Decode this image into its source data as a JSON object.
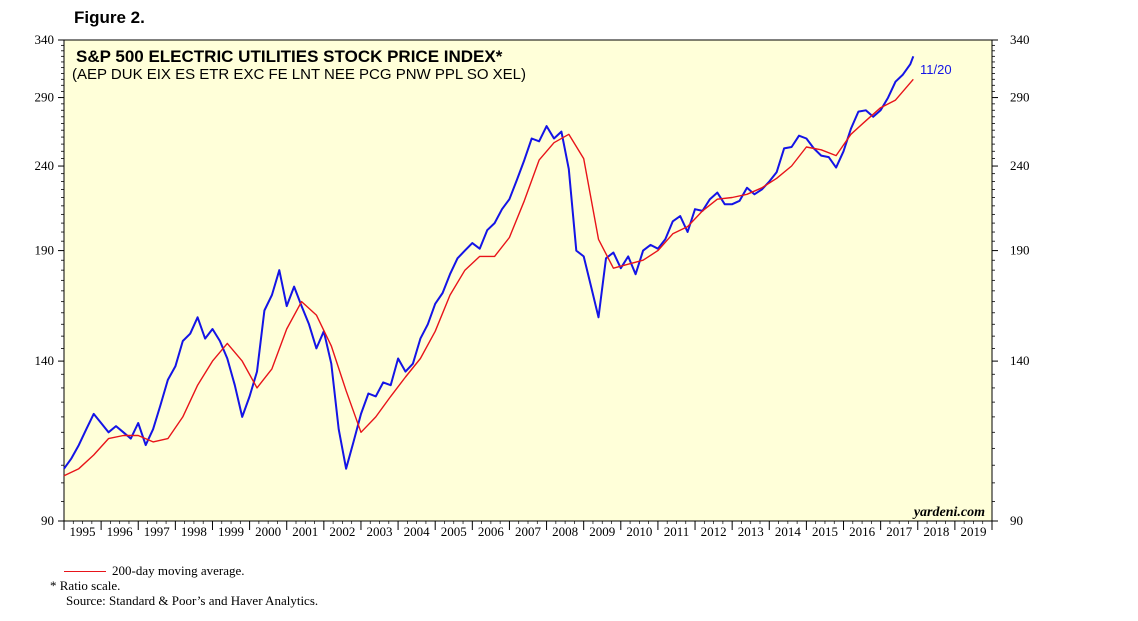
{
  "figure_label": "Figure 2.",
  "chart_data": {
    "type": "line",
    "title": "S&P 500 ELECTRIC UTILITIES STOCK PRICE INDEX*",
    "subtitle": "(AEP DUK EIX ES ETR EXC FE LNT NEE PCG PNW PPL SO XEL)",
    "y_scale": "log",
    "ylim": [
      90,
      340
    ],
    "y_ticks": [
      90,
      140,
      190,
      240,
      290,
      340
    ],
    "x_range": [
      1995,
      2020
    ],
    "x_tick_labels": [
      "1995",
      "1996",
      "1997",
      "1998",
      "1999",
      "2000",
      "2001",
      "2002",
      "2003",
      "2004",
      "2005",
      "2006",
      "2007",
      "2008",
      "2009",
      "2010",
      "2011",
      "2012",
      "2013",
      "2014",
      "2015",
      "2016",
      "2017",
      "2018",
      "2019"
    ],
    "latest_label": "11/20",
    "watermark": "yardeni.com",
    "series": [
      {
        "name": "S&P 500 Electric Utilities Stock Price Index",
        "color": "#1414e6",
        "x": [
          1995.0,
          1995.2,
          1995.4,
          1995.6,
          1995.8,
          1996.0,
          1996.2,
          1996.4,
          1996.6,
          1996.8,
          1997.0,
          1997.2,
          1997.4,
          1997.6,
          1997.8,
          1998.0,
          1998.2,
          1998.4,
          1998.6,
          1998.8,
          1999.0,
          1999.2,
          1999.4,
          1999.6,
          1999.8,
          2000.0,
          2000.2,
          2000.4,
          2000.6,
          2000.8,
          2001.0,
          2001.2,
          2001.4,
          2001.6,
          2001.8,
          2002.0,
          2002.2,
          2002.4,
          2002.6,
          2002.8,
          2003.0,
          2003.2,
          2003.4,
          2003.6,
          2003.8,
          2004.0,
          2004.2,
          2004.4,
          2004.6,
          2004.8,
          2005.0,
          2005.2,
          2005.4,
          2005.6,
          2005.8,
          2006.0,
          2006.2,
          2006.4,
          2006.6,
          2006.8,
          2007.0,
          2007.2,
          2007.4,
          2007.6,
          2007.8,
          2008.0,
          2008.2,
          2008.4,
          2008.6,
          2008.8,
          2009.0,
          2009.2,
          2009.4,
          2009.6,
          2009.8,
          2010.0,
          2010.2,
          2010.4,
          2010.6,
          2010.8,
          2011.0,
          2011.2,
          2011.4,
          2011.6,
          2011.8,
          2012.0,
          2012.2,
          2012.4,
          2012.6,
          2012.8,
          2013.0,
          2013.2,
          2013.4,
          2013.6,
          2013.8,
          2014.0,
          2014.2,
          2014.4,
          2014.6,
          2014.8,
          2015.0,
          2015.2,
          2015.4,
          2015.6,
          2015.8,
          2016.0,
          2016.2,
          2016.4,
          2016.6,
          2016.8,
          2017.0,
          2017.2,
          2017.4,
          2017.6,
          2017.8,
          2017.88
        ],
        "values": [
          104,
          107,
          111,
          116,
          121,
          118,
          115,
          117,
          115,
          113,
          118,
          111,
          116,
          124,
          133,
          138,
          148,
          151,
          158,
          149,
          153,
          148,
          141,
          131,
          120,
          127,
          136,
          161,
          168,
          180,
          163,
          172,
          163,
          155,
          145,
          152,
          139,
          116,
          104,
          112,
          121,
          128,
          127,
          132,
          131,
          141,
          136,
          139,
          149,
          155,
          164,
          169,
          178,
          186,
          190,
          194,
          191,
          201,
          205,
          213,
          219,
          231,
          244,
          259,
          257,
          268,
          259,
          264,
          238,
          190,
          187,
          172,
          158,
          186,
          189,
          181,
          187,
          178,
          190,
          193,
          191,
          196,
          206,
          209,
          200,
          213,
          212,
          219,
          223,
          216,
          216,
          218,
          226,
          222,
          225,
          230,
          236,
          252,
          253,
          261,
          259,
          252,
          247,
          246,
          239,
          250,
          266,
          279,
          280,
          275,
          280,
          290,
          303,
          309,
          318,
          325
        ]
      },
      {
        "name": "200-day moving average",
        "color": "#e8141a",
        "x": [
          1995.0,
          1995.4,
          1995.8,
          1996.2,
          1996.6,
          1997.0,
          1997.4,
          1997.8,
          1998.2,
          1998.6,
          1999.0,
          1999.4,
          1999.8,
          2000.2,
          2000.6,
          2001.0,
          2001.4,
          2001.8,
          2002.2,
          2002.6,
          2003.0,
          2003.4,
          2003.8,
          2004.2,
          2004.6,
          2005.0,
          2005.4,
          2005.8,
          2006.2,
          2006.6,
          2007.0,
          2007.4,
          2007.8,
          2008.2,
          2008.6,
          2009.0,
          2009.4,
          2009.8,
          2010.2,
          2010.6,
          2011.0,
          2011.4,
          2011.8,
          2012.2,
          2012.6,
          2013.0,
          2013.4,
          2013.8,
          2014.2,
          2014.6,
          2015.0,
          2015.4,
          2015.8,
          2016.2,
          2016.6,
          2017.0,
          2017.4,
          2017.88
        ],
        "values": [
          102,
          104,
          108,
          113,
          114,
          114,
          112,
          113,
          120,
          131,
          140,
          147,
          140,
          130,
          137,
          153,
          165,
          159,
          146,
          129,
          115,
          120,
          127,
          134,
          141,
          152,
          168,
          180,
          187,
          187,
          197,
          218,
          244,
          256,
          262,
          245,
          196,
          181,
          183,
          185,
          190,
          199,
          203,
          212,
          219,
          220,
          222,
          226,
          232,
          240,
          253,
          251,
          247,
          262,
          272,
          282,
          288,
          305
        ]
      }
    ],
    "legend": {
      "ma_label": "200-day moving average.",
      "ratio_note": "*   Ratio scale.",
      "source_note": "Source: Standard & Poor’s and Haver Analytics."
    }
  }
}
